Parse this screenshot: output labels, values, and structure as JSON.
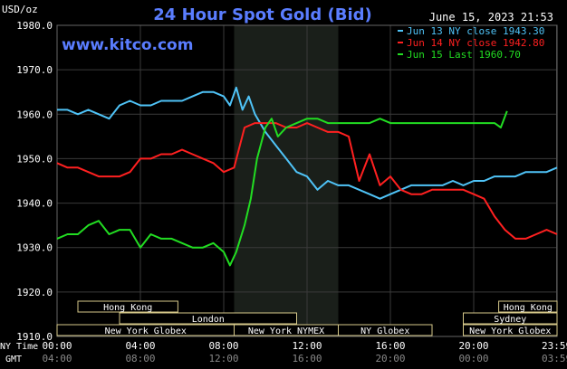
{
  "chart_data": {
    "type": "line",
    "title": "24 Hour Spot Gold (Bid)",
    "subtitle": "www.kitco.com",
    "timestamp": "June 15, 2023 21:53",
    "ylabel": "USD/oz",
    "ylim": [
      1910,
      1980
    ],
    "y_ticks": [
      "1980.0",
      "1970.0",
      "1960.0",
      "1950.0",
      "1940.0",
      "1930.0",
      "1920.0",
      "1910.0"
    ],
    "x_row_labels": [
      "NY Time",
      "GMT"
    ],
    "x_ticks_ny": [
      "00:00",
      "04:00",
      "08:00",
      "12:00",
      "16:00",
      "20:00",
      "23:59"
    ],
    "x_ticks_gmt": [
      "04:00",
      "08:00",
      "12:00",
      "16:00",
      "20:00",
      "00:00",
      "03:59"
    ],
    "grid": true,
    "legend_position": "top-right",
    "highlight_region": {
      "from_hour": 8.5,
      "to_hour": 13.5,
      "color": "#1a1f1a"
    },
    "sessions": [
      {
        "label": "Hong Kong",
        "start": 1.0,
        "end": 5.8,
        "row": 0
      },
      {
        "label": "Hong Kong",
        "start": 21.2,
        "end": 24.0,
        "row": 0
      },
      {
        "label": "London",
        "start": 3.0,
        "end": 11.5,
        "row": 1
      },
      {
        "label": "Sydney",
        "start": 19.5,
        "end": 24.0,
        "row": 1
      },
      {
        "label": "New York Globex",
        "start": 0.0,
        "end": 8.5,
        "row": 2
      },
      {
        "label": "New York NYMEX",
        "start": 8.5,
        "end": 13.5,
        "row": 2
      },
      {
        "label": "NY Globex",
        "start": 13.5,
        "end": 18.0,
        "row": 2
      },
      {
        "label": "New York Globex",
        "start": 19.5,
        "end": 24.0,
        "row": 2
      }
    ],
    "series": [
      {
        "name": "Jun 13 NY close 1943.30",
        "color": "#4fc3f7",
        "x": [
          0,
          0.5,
          1,
          1.5,
          2,
          2.5,
          3,
          3.5,
          4,
          4.5,
          5,
          5.5,
          6,
          6.5,
          7,
          7.5,
          8,
          8.3,
          8.6,
          8.9,
          9.2,
          9.5,
          10,
          10.5,
          11,
          11.5,
          12,
          12.5,
          13,
          13.5,
          14,
          14.5,
          15,
          15.5,
          16,
          16.5,
          17,
          17.5,
          18,
          18.5,
          19,
          19.5,
          20,
          20.5,
          21,
          21.5,
          22,
          22.5,
          23,
          23.5,
          24
        ],
        "values": [
          1961,
          1961,
          1960,
          1961,
          1960,
          1959,
          1962,
          1963,
          1962,
          1962,
          1963,
          1963,
          1963,
          1964,
          1965,
          1965,
          1964,
          1962,
          1966,
          1961,
          1964,
          1960,
          1956,
          1953,
          1950,
          1947,
          1946,
          1943,
          1945,
          1944,
          1944,
          1943,
          1942,
          1941,
          1942,
          1943,
          1944,
          1944,
          1944,
          1944,
          1945,
          1944,
          1945,
          1945,
          1946,
          1946,
          1946,
          1947,
          1947,
          1947,
          1948
        ]
      },
      {
        "name": "Jun 14 NY close 1942.80",
        "color": "#ff2020",
        "x": [
          0,
          0.5,
          1,
          1.5,
          2,
          2.5,
          3,
          3.5,
          4,
          4.5,
          5,
          5.5,
          6,
          6.5,
          7,
          7.5,
          8,
          8.5,
          9,
          9.5,
          10,
          10.5,
          11,
          11.5,
          12,
          12.5,
          13,
          13.5,
          14,
          14.5,
          15,
          15.5,
          16,
          16.5,
          17,
          17.5,
          18,
          18.5,
          19,
          19.5,
          20,
          20.5,
          21,
          21.5,
          22,
          22.5,
          23,
          23.5,
          24
        ],
        "values": [
          1949,
          1948,
          1948,
          1947,
          1946,
          1946,
          1946,
          1947,
          1950,
          1950,
          1951,
          1951,
          1952,
          1951,
          1950,
          1949,
          1947,
          1948,
          1957,
          1958,
          1958,
          1958,
          1957,
          1957,
          1958,
          1957,
          1956,
          1956,
          1955,
          1945,
          1951,
          1944,
          1946,
          1943,
          1942,
          1942,
          1943,
          1943,
          1943,
          1943,
          1942,
          1941,
          1937,
          1934,
          1932,
          1932,
          1933,
          1934,
          1933
        ]
      },
      {
        "name": "Jun 15 Last 1960.70",
        "color": "#22dd22",
        "x": [
          0,
          0.5,
          1,
          1.5,
          2,
          2.5,
          3,
          3.5,
          4,
          4.5,
          5,
          5.5,
          6,
          6.5,
          7,
          7.5,
          8,
          8.3,
          8.6,
          9,
          9.3,
          9.6,
          10,
          10.3,
          10.6,
          11,
          11.5,
          12,
          12.5,
          13,
          13.5,
          14,
          14.5,
          15,
          15.5,
          16,
          16.5,
          17,
          17.5,
          18,
          18.5,
          19,
          19.5,
          20,
          20.5,
          21,
          21.3,
          21.6
        ],
        "values": [
          1932,
          1933,
          1933,
          1935,
          1936,
          1933,
          1934,
          1934,
          1930,
          1933,
          1932,
          1932,
          1931,
          1930,
          1930,
          1931,
          1929,
          1926,
          1929,
          1935,
          1941,
          1950,
          1957,
          1959,
          1955,
          1957,
          1958,
          1959,
          1959,
          1958,
          1958,
          1958,
          1958,
          1958,
          1959,
          1958,
          1958,
          1958,
          1958,
          1958,
          1958,
          1958,
          1958,
          1958,
          1958,
          1958,
          1957,
          1960.7
        ]
      }
    ]
  }
}
